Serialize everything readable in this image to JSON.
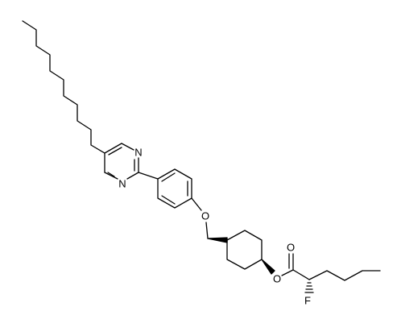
{
  "atoms": [
    {
      "label": "N"
    },
    {
      "label": "N"
    },
    {
      "label": "O"
    },
    {
      "label": "O"
    },
    {
      "label": "O"
    },
    {
      "label": "F"
    }
  ]
}
